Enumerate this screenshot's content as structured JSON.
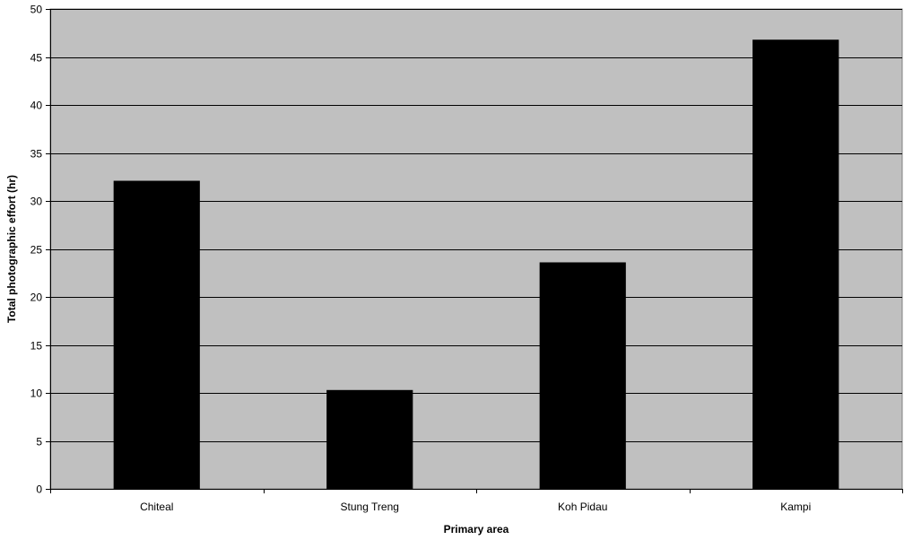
{
  "chart_data": {
    "type": "bar",
    "title": "",
    "xlabel": "Primary area",
    "ylabel": "Total photographic effort (hr)",
    "categories": [
      "Chiteal",
      "Stung Treng",
      "Koh Pidau",
      "Kampi"
    ],
    "values": [
      32.1,
      10.3,
      23.6,
      46.8
    ],
    "ylim": [
      0,
      50
    ],
    "yticks": [
      0,
      5,
      10,
      15,
      20,
      25,
      30,
      35,
      40,
      45,
      50
    ],
    "ytick_labels": [
      "0",
      "5",
      "10",
      "15",
      "20",
      "25",
      "30",
      "35",
      "40",
      "45",
      "50"
    ],
    "grid": true,
    "legend": "none",
    "colors": {
      "plot_background": "#c0c0c0",
      "bar": "#000000",
      "gridline": "#000000"
    }
  }
}
